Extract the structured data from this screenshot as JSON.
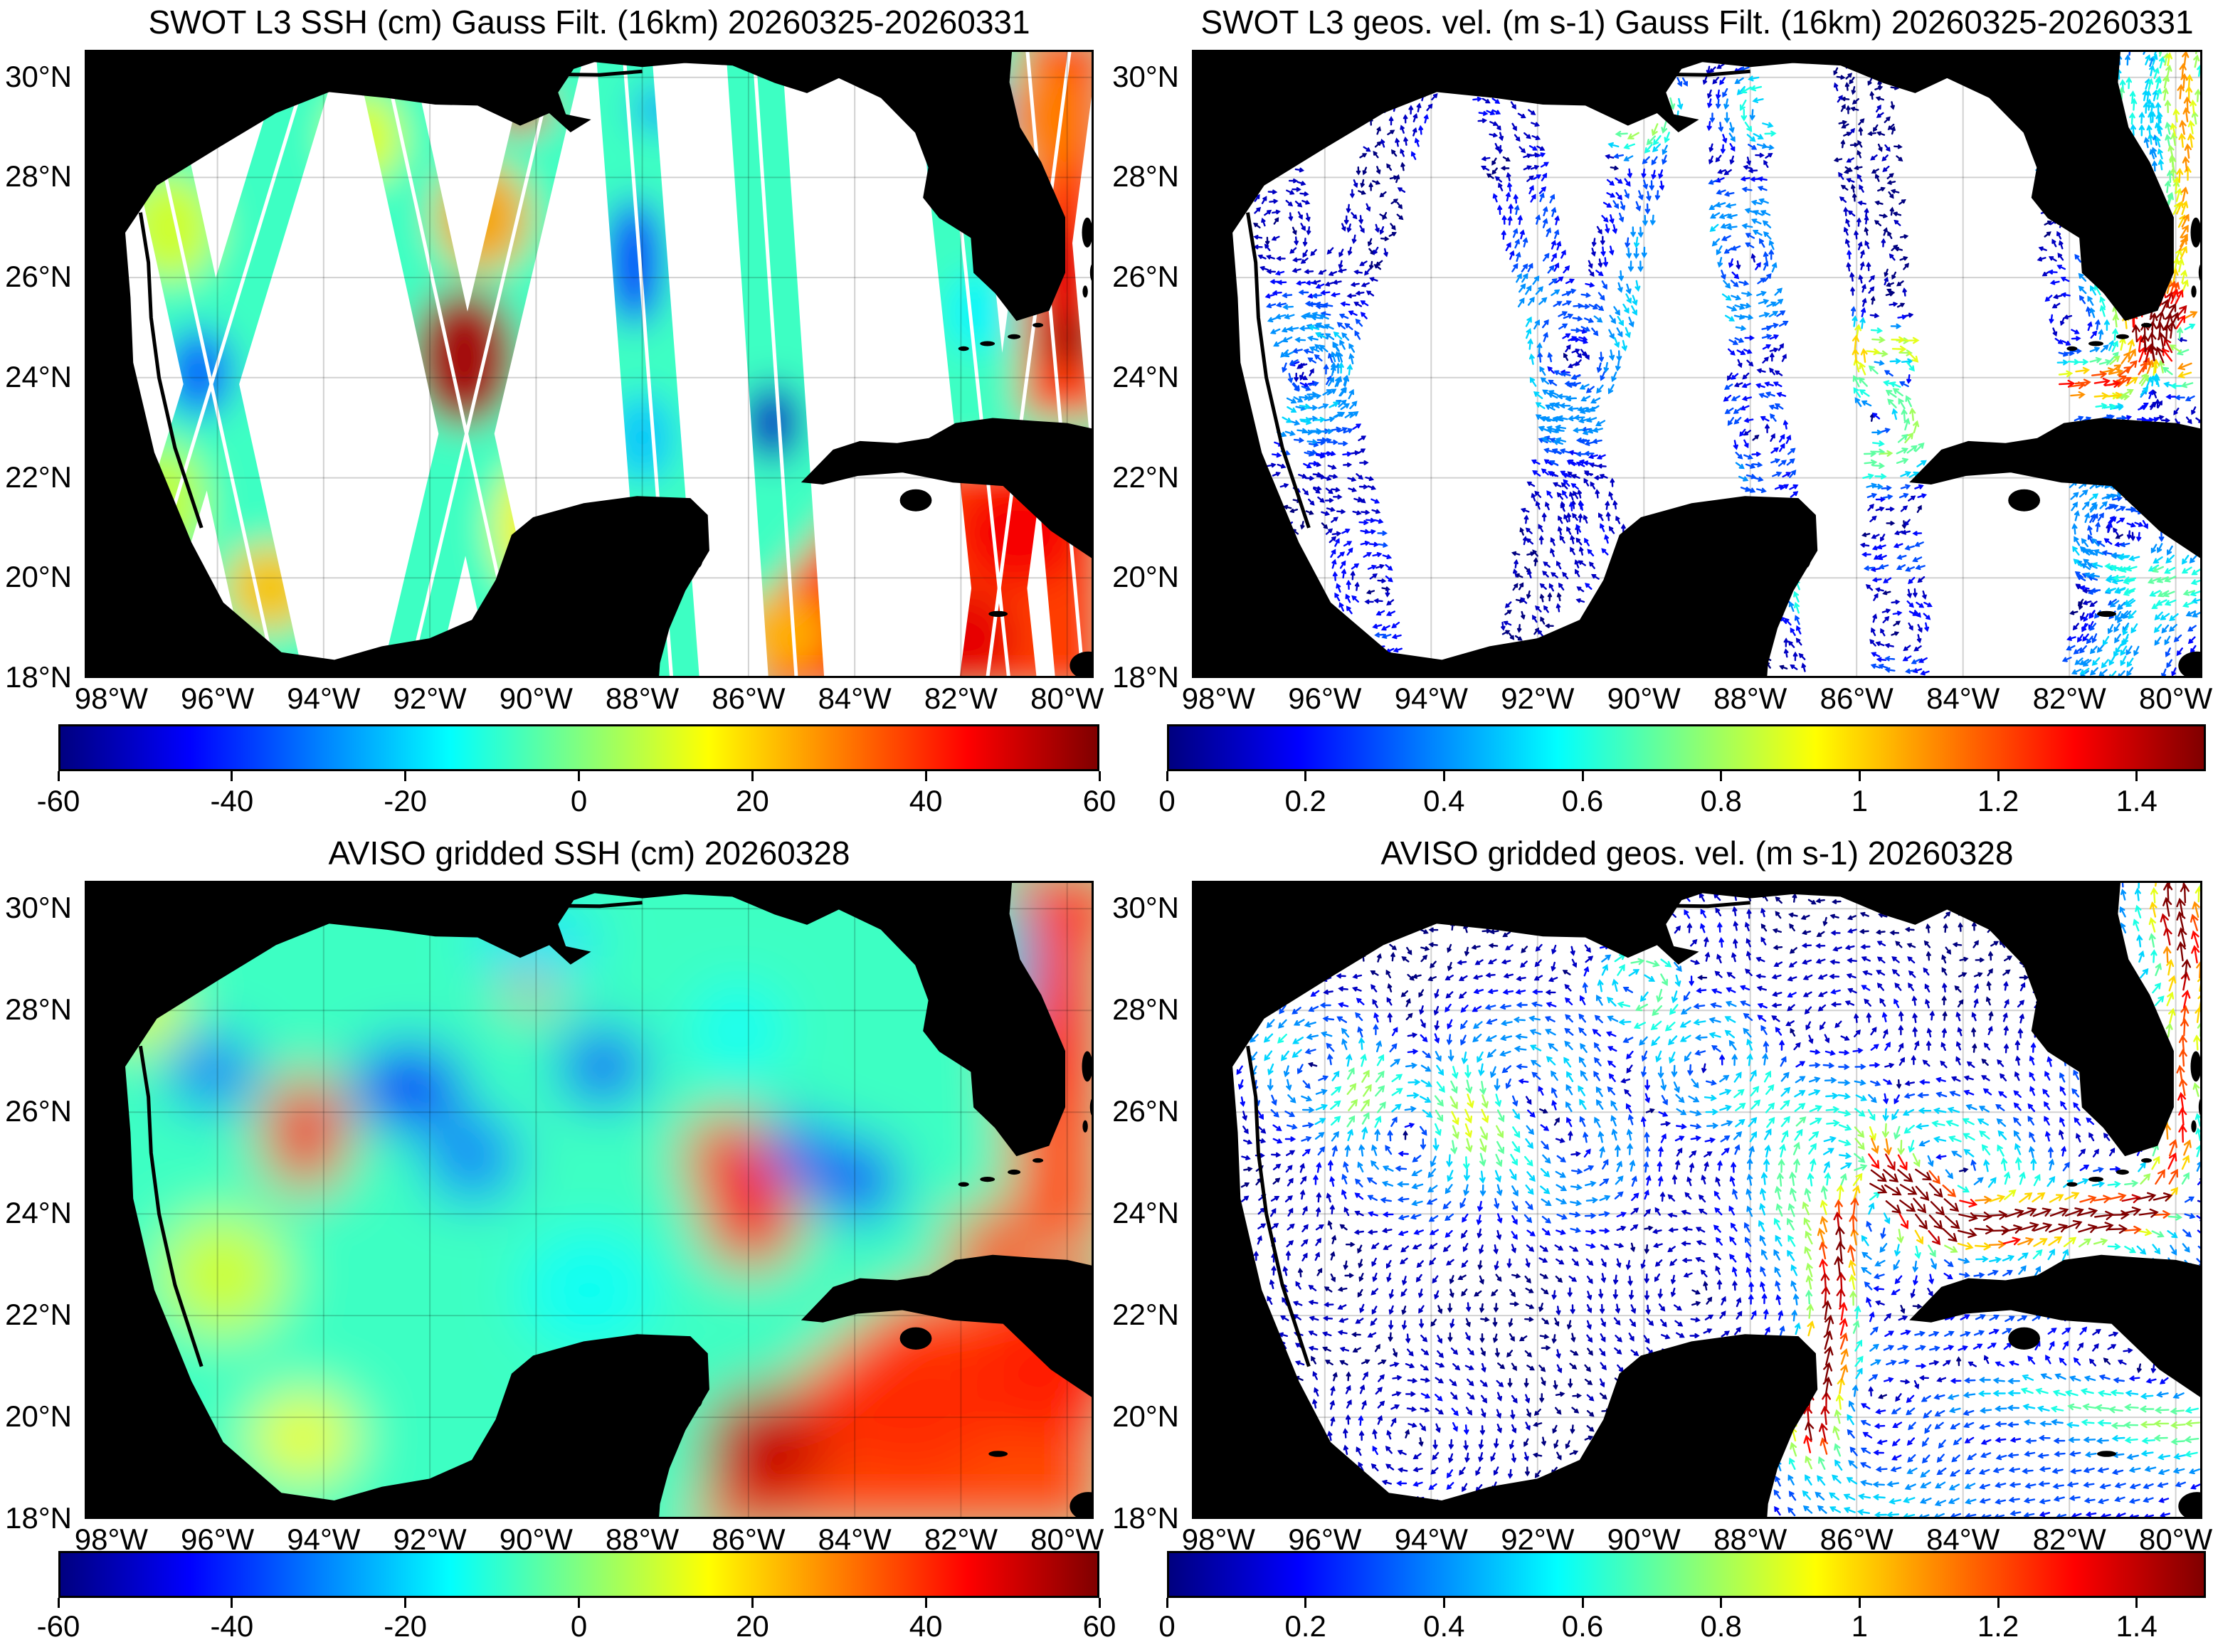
{
  "figure": {
    "background": "#ffffff",
    "land_color": "#000000",
    "ocean_color": "#ffffff",
    "grid_color": "rgba(0,0,0,0.18)",
    "frame_color": "#000000",
    "colormap": "jet"
  },
  "panels": [
    {
      "key": "swot_ssh",
      "title": "SWOT L3 SSH (cm) Gauss Filt. (16km) 20260325-20260331",
      "kind": "ssh",
      "field": "swot",
      "mask": "swath",
      "colorbar": "ssh"
    },
    {
      "key": "swot_vel",
      "title": "SWOT L3 geos. vel. (m s-1) Gauss Filt. (16km) 20260325-20260331",
      "kind": "vel",
      "field": "swot",
      "mask": "swath",
      "colorbar": "vel"
    },
    {
      "key": "aviso_ssh",
      "title": "AVISO gridded SSH (cm) 20260328",
      "kind": "ssh",
      "field": "aviso",
      "mask": "full",
      "colorbar": "ssh"
    },
    {
      "key": "aviso_vel",
      "title": "AVISO gridded geos. vel. (m s-1)  20260328",
      "kind": "vel",
      "field": "aviso",
      "mask": "full",
      "colorbar": "vel"
    }
  ],
  "axes": {
    "lon_range_w": [
      98.5,
      79.5
    ],
    "lat_range_n": [
      18.0,
      30.55
    ],
    "lon_tick_values": [
      98,
      96,
      94,
      92,
      90,
      88,
      86,
      84,
      82,
      80
    ],
    "lon_tick_labels": [
      "98°W",
      "96°W",
      "94°W",
      "92°W",
      "90°W",
      "88°W",
      "86°W",
      "84°W",
      "82°W",
      "80°W"
    ],
    "lat_tick_values": [
      30,
      28,
      26,
      24,
      22,
      20,
      18
    ],
    "lat_tick_labels": [
      "30°N",
      "28°N",
      "26°N",
      "24°N",
      "22°N",
      "20°N",
      "18°N"
    ]
  },
  "colorbars": {
    "ssh": {
      "min": -60,
      "max": 60,
      "units": "cm",
      "tick_values": [
        -60,
        -40,
        -20,
        0,
        20,
        40,
        60
      ],
      "tick_labels": [
        "-60",
        "-40",
        "-20",
        "0",
        "20",
        "40",
        "60"
      ]
    },
    "vel": {
      "min": 0,
      "max": 1.5,
      "units": "m s-1",
      "tick_values": [
        0,
        0.2,
        0.4,
        0.6,
        0.8,
        1,
        1.2,
        1.4
      ],
      "tick_labels": [
        "0",
        "0.2",
        "0.4",
        "0.6",
        "0.8",
        "1",
        "1.2",
        "1.4"
      ]
    }
  },
  "chart_data": {
    "type": "heatmap",
    "description": "Four-panel Gulf of Mexico map figure: SWOT L3 swath SSH and geostrophic velocity (Gauss filtered 16km, 20260325-20260331) on top; AVISO gridded SSH and geostrophic velocity (20260328) on bottom. Jet colormap; SSH range -60..60 cm; speed range 0..1.5 m/s; lon 98.5W-79.5W, lat 18N-30.55N; black land mask, white ocean, gray graticule every 2 degrees.",
    "geo": {
      "mainland": [
        [
          98.5,
          30.55
        ],
        [
          81.05,
          30.55
        ],
        [
          81.1,
          29.9
        ],
        [
          80.9,
          29.0
        ],
        [
          80.5,
          28.3
        ],
        [
          80.05,
          27.2
        ],
        [
          80.05,
          26.1
        ],
        [
          80.35,
          25.35
        ],
        [
          80.95,
          25.15
        ],
        [
          81.35,
          25.7
        ],
        [
          81.75,
          26.1
        ],
        [
          81.8,
          26.8
        ],
        [
          82.4,
          27.2
        ],
        [
          82.7,
          27.6
        ],
        [
          82.6,
          28.2
        ],
        [
          82.85,
          28.9
        ],
        [
          83.5,
          29.6
        ],
        [
          84.3,
          30.0
        ],
        [
          84.9,
          29.7
        ],
        [
          85.5,
          29.9
        ],
        [
          86.3,
          30.25
        ],
        [
          87.2,
          30.3
        ],
        [
          88.0,
          30.22
        ],
        [
          88.9,
          30.32
        ],
        [
          89.3,
          30.18
        ],
        [
          89.6,
          29.7
        ],
        [
          89.45,
          29.25
        ],
        [
          89.0,
          29.15
        ],
        [
          89.35,
          28.92
        ],
        [
          89.75,
          29.3
        ],
        [
          90.3,
          29.05
        ],
        [
          91.1,
          29.45
        ],
        [
          91.9,
          29.47
        ],
        [
          92.8,
          29.6
        ],
        [
          93.9,
          29.72
        ],
        [
          94.9,
          29.3
        ],
        [
          96.0,
          28.6
        ],
        [
          97.15,
          27.85
        ],
        [
          97.75,
          26.9
        ],
        [
          97.65,
          25.6
        ],
        [
          97.6,
          24.3
        ],
        [
          97.2,
          22.5
        ],
        [
          96.5,
          20.7
        ],
        [
          95.9,
          19.5
        ],
        [
          94.8,
          18.5
        ],
        [
          93.8,
          18.35
        ],
        [
          92.9,
          18.62
        ],
        [
          92.0,
          18.78
        ],
        [
          91.2,
          19.15
        ],
        [
          90.75,
          19.95
        ],
        [
          90.45,
          20.85
        ],
        [
          90.05,
          21.2
        ],
        [
          89.1,
          21.48
        ],
        [
          88.1,
          21.62
        ],
        [
          87.1,
          21.58
        ],
        [
          86.78,
          21.25
        ],
        [
          86.75,
          20.55
        ],
        [
          87.2,
          19.75
        ],
        [
          87.5,
          19.0
        ],
        [
          87.68,
          18.3
        ],
        [
          87.7,
          18.0
        ],
        [
          98.5,
          18.0
        ]
      ],
      "cuba": [
        [
          84.98,
          21.92
        ],
        [
          84.4,
          22.55
        ],
        [
          83.9,
          22.72
        ],
        [
          83.2,
          22.68
        ],
        [
          82.6,
          22.78
        ],
        [
          82.1,
          23.08
        ],
        [
          81.4,
          23.18
        ],
        [
          80.6,
          23.12
        ],
        [
          80.0,
          23.08
        ],
        [
          79.45,
          22.95
        ],
        [
          79.45,
          20.35
        ],
        [
          80.3,
          20.95
        ],
        [
          81.2,
          21.85
        ],
        [
          82.15,
          21.92
        ],
        [
          83.1,
          22.12
        ],
        [
          83.95,
          22.05
        ],
        [
          84.6,
          21.88
        ]
      ],
      "islands": [
        [
          80.55,
          25.05,
          0.1,
          0.045
        ],
        [
          81.0,
          24.82,
          0.12,
          0.05
        ],
        [
          81.5,
          24.68,
          0.14,
          0.05
        ],
        [
          81.95,
          24.58,
          0.1,
          0.045
        ],
        [
          79.62,
          26.9,
          0.1,
          0.3
        ],
        [
          79.5,
          26.1,
          0.07,
          0.2
        ],
        [
          79.66,
          25.72,
          0.05,
          0.12
        ],
        [
          82.85,
          21.55,
          0.3,
          0.22
        ],
        [
          86.95,
          20.4,
          0.09,
          0.2
        ],
        [
          81.3,
          19.28,
          0.18,
          0.06
        ],
        [
          79.6,
          18.25,
          0.35,
          0.28
        ]
      ],
      "barrier_lines": [
        [
          [
            97.45,
            27.3
          ],
          [
            97.3,
            26.3
          ],
          [
            97.25,
            25.2
          ],
          [
            97.1,
            24.0
          ],
          [
            96.8,
            22.6
          ],
          [
            96.3,
            21.0
          ]
        ],
        [
          [
            89.6,
            30.06
          ],
          [
            88.8,
            30.05
          ],
          [
            88.0,
            30.12
          ]
        ]
      ]
    },
    "swaths": {
      "width_deg": 1.05,
      "gap_deg": 0.09,
      "bands_top_bottom_lon": [
        [
          97.5,
          94.9
        ],
        [
          94.2,
          97.8
        ],
        [
          92.9,
          90.3
        ],
        [
          89.6,
          92.4
        ],
        [
          88.35,
          87.45
        ],
        [
          85.9,
          85.1
        ],
        [
          82.35,
          81.1
        ],
        [
          80.75,
          79.7
        ],
        [
          79.95,
          81.5
        ]
      ]
    },
    "fields": {
      "swot": {
        "base_ssh_cm": -8,
        "warm_regions": [
          {
            "ssh": 38,
            "poly": [
              [
                85.9,
                17.6
              ],
              [
                79.2,
                17.6
              ],
              [
                79.2,
                22.6
              ],
              [
                83.4,
                22.3
              ],
              [
                85.9,
                19.3
              ]
            ]
          },
          {
            "ssh": 38,
            "poly": [
              [
                80.85,
                30.9
              ],
              [
                79.2,
                30.9
              ],
              [
                79.2,
                23.2
              ],
              [
                80.85,
                23.2
              ]
            ]
          }
        ],
        "blobs": [
          [
            96.9,
            27.0,
            10,
            0.9,
            1.1
          ],
          [
            96.35,
            24.1,
            -34,
            0.65,
            0.9
          ],
          [
            95.0,
            19.8,
            22,
            0.9,
            0.9
          ],
          [
            97.0,
            21.5,
            8,
            0.8,
            1.2
          ],
          [
            93.6,
            23.5,
            -30,
            0.55,
            0.7
          ],
          [
            93.2,
            28.8,
            12,
            0.7,
            0.9
          ],
          [
            91.35,
            24.4,
            55,
            1.0,
            1.4
          ],
          [
            91.0,
            27.2,
            26,
            0.9,
            1.1
          ],
          [
            90.3,
            29.4,
            46,
            0.55,
            0.5
          ],
          [
            89.9,
            21.0,
            16,
            0.9,
            1.4
          ],
          [
            88.15,
            26.3,
            -40,
            0.55,
            1.3
          ],
          [
            88.0,
            22.8,
            -22,
            0.6,
            0.9
          ],
          [
            87.7,
            29.35,
            -28,
            0.45,
            0.45
          ],
          [
            85.55,
            23.1,
            -52,
            0.55,
            0.8
          ],
          [
            85.4,
            18.9,
            24,
            0.9,
            0.8
          ],
          [
            82.0,
            29.3,
            -42,
            0.7,
            1.2
          ],
          [
            81.7,
            25.3,
            -16,
            0.6,
            0.8
          ],
          [
            80.35,
            29.2,
            30,
            0.8,
            1.2
          ],
          [
            80.15,
            26.1,
            48,
            0.7,
            1.0
          ],
          [
            79.95,
            24.75,
            58,
            0.5,
            0.55
          ],
          [
            80.9,
            20.9,
            46,
            1.2,
            1.1
          ],
          [
            82.2,
            18.8,
            48,
            1.3,
            1.0
          ]
        ]
      },
      "aviso": {
        "base_ssh_cm": -8,
        "warm_regions": [
          {
            "ssh": 36,
            "poly": [
              [
                87.2,
                17.6
              ],
              [
                79.2,
                17.6
              ],
              [
                79.2,
                23.0
              ],
              [
                83.2,
                22.4
              ],
              [
                86.2,
                19.8
              ]
            ]
          },
          {
            "ssh": 36,
            "poly": [
              [
                81.2,
                30.9
              ],
              [
                79.2,
                30.9
              ],
              [
                79.2,
                23.2
              ],
              [
                81.0,
                23.2
              ]
            ]
          }
        ],
        "blobs": [
          [
            97.4,
            28.0,
            12,
            0.8,
            0.8
          ],
          [
            96.1,
            26.8,
            -34,
            0.8,
            0.75
          ],
          [
            94.35,
            25.6,
            44,
            0.8,
            1.15
          ],
          [
            92.4,
            26.5,
            -44,
            1.05,
            0.85
          ],
          [
            91.2,
            25.1,
            -32,
            0.85,
            0.85
          ],
          [
            90.1,
            28.55,
            34,
            0.5,
            0.5
          ],
          [
            90.0,
            29.3,
            -18,
            1.2,
            0.7
          ],
          [
            88.75,
            26.9,
            -40,
            0.8,
            0.75
          ],
          [
            95.9,
            22.8,
            10,
            1.2,
            1.2
          ],
          [
            94.4,
            19.6,
            14,
            1.0,
            0.9
          ],
          [
            89.0,
            22.5,
            -14,
            1.3,
            1.2
          ],
          [
            86.4,
            25.1,
            40,
            0.85,
            0.9
          ],
          [
            85.95,
            23.9,
            44,
            0.95,
            1.0
          ],
          [
            85.05,
            25.25,
            -36,
            0.6,
            0.7
          ],
          [
            83.95,
            24.65,
            -44,
            0.75,
            0.8
          ],
          [
            86.2,
            27.6,
            -14,
            0.9,
            0.9
          ],
          [
            85.7,
            19.4,
            52,
            1.2,
            1.2
          ],
          [
            83.0,
            20.3,
            40,
            1.8,
            1.5
          ],
          [
            80.2,
            21.0,
            42,
            1.5,
            1.5
          ],
          [
            80.3,
            27.6,
            44,
            0.9,
            1.6
          ],
          [
            79.6,
            30.1,
            40,
            0.8,
            0.8
          ],
          [
            80.95,
            28.9,
            -26,
            0.35,
            1.4
          ],
          [
            81.4,
            23.4,
            36,
            0.9,
            0.7
          ]
        ]
      }
    },
    "currents": [
      {
        "name": "yucatan-loop-gulfstream",
        "peak_ms": 1.35,
        "width_deg": 0.33,
        "points": [
          [
            86.75,
            19.5
          ],
          [
            86.6,
            21.2
          ],
          [
            86.3,
            23.0
          ],
          [
            85.9,
            24.6
          ],
          [
            85.0,
            24.55
          ],
          [
            84.3,
            23.9
          ],
          [
            83.3,
            23.75
          ],
          [
            82.2,
            23.8
          ],
          [
            81.2,
            23.9
          ],
          [
            80.4,
            24.3
          ],
          [
            79.95,
            25.3
          ],
          [
            79.8,
            27.0
          ],
          [
            79.75,
            28.8
          ],
          [
            79.9,
            30.55
          ]
        ]
      },
      {
        "name": "caribbean",
        "peak_ms": 0.55,
        "width_deg": 0.45,
        "points": [
          [
            79.5,
            19.8
          ],
          [
            81.0,
            20.2
          ],
          [
            82.8,
            20.6
          ],
          [
            84.6,
            20.4
          ],
          [
            86.2,
            20.0
          ],
          [
            86.8,
            19.6
          ]
        ]
      }
    ]
  }
}
